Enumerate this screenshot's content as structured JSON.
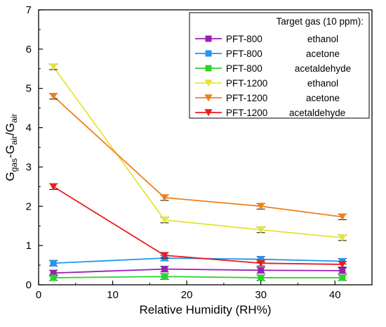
{
  "chart_data": {
    "type": "line",
    "x_label": "Relative Humidity (RH%)",
    "y_label": {
      "base": "G",
      "sub1": "gas",
      "mid": "-G",
      "sub2": "air",
      "slash": "/G",
      "sub3": "air"
    },
    "xlim": [
      0,
      45
    ],
    "ylim": [
      0,
      7
    ],
    "x_ticks": [
      0,
      10,
      20,
      30,
      40
    ],
    "y_ticks": [
      0,
      1,
      2,
      3,
      4,
      5,
      6,
      7
    ],
    "legend_title": "Target gas (10 ppm):",
    "legend_position": "top-right",
    "x": [
      2,
      17,
      30,
      41
    ],
    "series": [
      {
        "name": "PFT-800",
        "gas": "ethanol",
        "color": "#9b1fb5",
        "marker": "square",
        "values": [
          0.3,
          0.4,
          0.37,
          0.36
        ]
      },
      {
        "name": "PFT-800",
        "gas": "acetone",
        "color": "#2196f3",
        "marker": "square",
        "values": [
          0.55,
          0.68,
          0.65,
          0.6
        ]
      },
      {
        "name": "PFT-800",
        "gas": "acetaldehyde",
        "color": "#2ad42a",
        "marker": "square",
        "values": [
          0.18,
          0.21,
          0.18,
          0.18
        ]
      },
      {
        "name": "PFT-1200",
        "gas": "ethanol",
        "color": "#e4e43a",
        "marker": "triangle-down",
        "values": [
          5.55,
          1.65,
          1.4,
          1.2
        ]
      },
      {
        "name": "PFT-1200",
        "gas": "acetone",
        "color": "#f07f1a",
        "marker": "triangle-down",
        "values": [
          4.8,
          2.22,
          2.0,
          1.73
        ]
      },
      {
        "name": "PFT-1200",
        "gas": "acetaldehyde",
        "color": "#ee1c1c",
        "marker": "triangle-down",
        "values": [
          2.5,
          0.75,
          0.55,
          0.52
        ]
      }
    ]
  }
}
